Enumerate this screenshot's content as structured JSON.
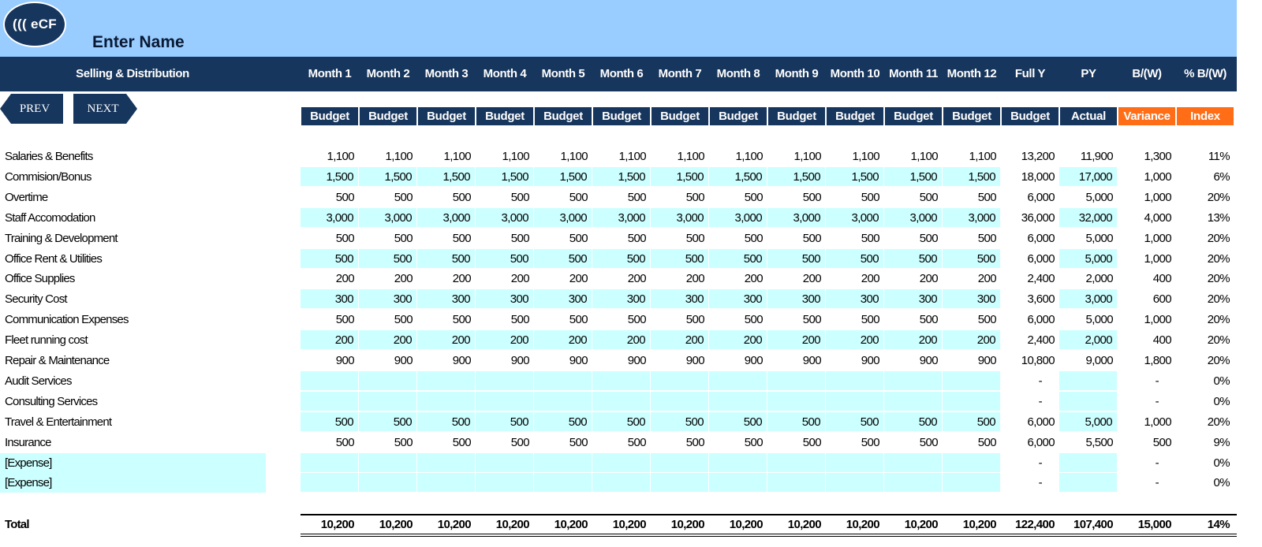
{
  "logo": {
    "text": "((( eCF"
  },
  "header": {
    "name": "Enter Name",
    "section_title": "Selling & Distribution",
    "columns": [
      "Month 1",
      "Month 2",
      "Month 3",
      "Month 4",
      "Month 5",
      "Month 6",
      "Month 7",
      "Month 8",
      "Month 9",
      "Month 10",
      "Month 11",
      "Month 12",
      "Full Y",
      "PY",
      "B/(W)",
      "% B/(W)"
    ],
    "subheaders": [
      "Budget",
      "Budget",
      "Budget",
      "Budget",
      "Budget",
      "Budget",
      "Budget",
      "Budget",
      "Budget",
      "Budget",
      "Budget",
      "Budget",
      "Budget",
      "Actual",
      "Variance",
      "Index"
    ]
  },
  "nav": {
    "prev_label": "PREV",
    "next_label": "NEXT"
  },
  "colors": {
    "header_bg": "#17365d",
    "top_band": "#99ccff",
    "input_fill": "#ccffff",
    "variance_accent": "#ff6e17"
  },
  "rows": [
    {
      "label": "Salaries & Benefits",
      "months": [
        "1,100",
        "1,100",
        "1,100",
        "1,100",
        "1,100",
        "1,100",
        "1,100",
        "1,100",
        "1,100",
        "1,100",
        "1,100",
        "1,100"
      ],
      "full_y": "13,200",
      "py": "11,900",
      "bw": "1,300",
      "pct": "11%"
    },
    {
      "label": "Commision/Bonus",
      "months": [
        "1,500",
        "1,500",
        "1,500",
        "1,500",
        "1,500",
        "1,500",
        "1,500",
        "1,500",
        "1,500",
        "1,500",
        "1,500",
        "1,500"
      ],
      "full_y": "18,000",
      "py": "17,000",
      "bw": "1,000",
      "pct": "6%"
    },
    {
      "label": "Overtime",
      "months": [
        "500",
        "500",
        "500",
        "500",
        "500",
        "500",
        "500",
        "500",
        "500",
        "500",
        "500",
        "500"
      ],
      "full_y": "6,000",
      "py": "5,000",
      "bw": "1,000",
      "pct": "20%"
    },
    {
      "label": "Staff Accomodation",
      "months": [
        "3,000",
        "3,000",
        "3,000",
        "3,000",
        "3,000",
        "3,000",
        "3,000",
        "3,000",
        "3,000",
        "3,000",
        "3,000",
        "3,000"
      ],
      "full_y": "36,000",
      "py": "32,000",
      "bw": "4,000",
      "pct": "13%"
    },
    {
      "label": "Training & Development",
      "months": [
        "500",
        "500",
        "500",
        "500",
        "500",
        "500",
        "500",
        "500",
        "500",
        "500",
        "500",
        "500"
      ],
      "full_y": "6,000",
      "py": "5,000",
      "bw": "1,000",
      "pct": "20%"
    },
    {
      "label": "Office Rent & Utilities",
      "months": [
        "500",
        "500",
        "500",
        "500",
        "500",
        "500",
        "500",
        "500",
        "500",
        "500",
        "500",
        "500"
      ],
      "full_y": "6,000",
      "py": "5,000",
      "bw": "1,000",
      "pct": "20%"
    },
    {
      "label": "Office Supplies",
      "months": [
        "200",
        "200",
        "200",
        "200",
        "200",
        "200",
        "200",
        "200",
        "200",
        "200",
        "200",
        "200"
      ],
      "full_y": "2,400",
      "py": "2,000",
      "bw": "400",
      "pct": "20%"
    },
    {
      "label": "Security Cost",
      "months": [
        "300",
        "300",
        "300",
        "300",
        "300",
        "300",
        "300",
        "300",
        "300",
        "300",
        "300",
        "300"
      ],
      "full_y": "3,600",
      "py": "3,000",
      "bw": "600",
      "pct": "20%"
    },
    {
      "label": "Communication Expenses",
      "months": [
        "500",
        "500",
        "500",
        "500",
        "500",
        "500",
        "500",
        "500",
        "500",
        "500",
        "500",
        "500"
      ],
      "full_y": "6,000",
      "py": "5,000",
      "bw": "1,000",
      "pct": "20%"
    },
    {
      "label": "Fleet running cost",
      "months": [
        "200",
        "200",
        "200",
        "200",
        "200",
        "200",
        "200",
        "200",
        "200",
        "200",
        "200",
        "200"
      ],
      "full_y": "2,400",
      "py": "2,000",
      "bw": "400",
      "pct": "20%"
    },
    {
      "label": "Repair & Maintenance",
      "months": [
        "900",
        "900",
        "900",
        "900",
        "900",
        "900",
        "900",
        "900",
        "900",
        "900",
        "900",
        "900"
      ],
      "full_y": "10,800",
      "py": "9,000",
      "bw": "1,800",
      "pct": "20%"
    },
    {
      "label": "Audit Services",
      "months": [
        "",
        "",
        "",
        "",
        "",
        "",
        "",
        "",
        "",
        "",
        "",
        ""
      ],
      "full_y": "-",
      "py": "",
      "bw": "-",
      "pct": "0%"
    },
    {
      "label": "Consulting Services",
      "months": [
        "",
        "",
        "",
        "",
        "",
        "",
        "",
        "",
        "",
        "",
        "",
        ""
      ],
      "full_y": "-",
      "py": "",
      "bw": "-",
      "pct": "0%"
    },
    {
      "label": "Travel & Entertainment",
      "months": [
        "500",
        "500",
        "500",
        "500",
        "500",
        "500",
        "500",
        "500",
        "500",
        "500",
        "500",
        "500"
      ],
      "full_y": "6,000",
      "py": "5,000",
      "bw": "1,000",
      "pct": "20%"
    },
    {
      "label": "Insurance",
      "months": [
        "500",
        "500",
        "500",
        "500",
        "500",
        "500",
        "500",
        "500",
        "500",
        "500",
        "500",
        "500"
      ],
      "full_y": "6,000",
      "py": "5,500",
      "bw": "500",
      "pct": "9%"
    },
    {
      "label": "[Expense]",
      "months": [
        "",
        "",
        "",
        "",
        "",
        "",
        "",
        "",
        "",
        "",
        "",
        ""
      ],
      "full_y": "-",
      "py": "",
      "bw": "-",
      "pct": "0%",
      "label_input": true
    },
    {
      "label": "[Expense]",
      "months": [
        "",
        "",
        "",
        "",
        "",
        "",
        "",
        "",
        "",
        "",
        "",
        ""
      ],
      "full_y": "-",
      "py": "",
      "bw": "-",
      "pct": "0%",
      "label_input": true
    }
  ],
  "total": {
    "label": "Total",
    "months": [
      "10,200",
      "10,200",
      "10,200",
      "10,200",
      "10,200",
      "10,200",
      "10,200",
      "10,200",
      "10,200",
      "10,200",
      "10,200",
      "10,200"
    ],
    "full_y": "122,400",
    "py": "107,400",
    "bw": "15,000",
    "pct": "14%"
  }
}
